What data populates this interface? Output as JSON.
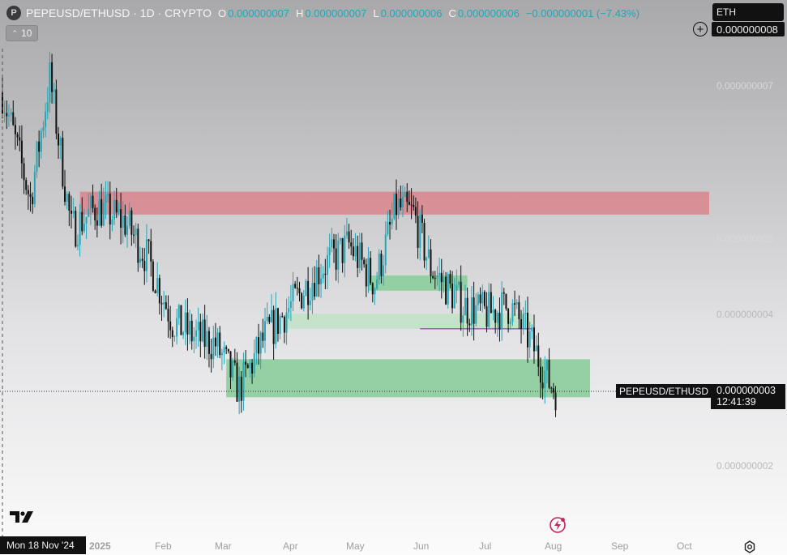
{
  "header": {
    "logo_letter": "P",
    "symbol_line": "PEPEUSD/ETHUSD · 1D · CRYPTO",
    "ohlc": [
      {
        "key": "O",
        "value": "0.000000007"
      },
      {
        "key": "H",
        "value": "0.000000007"
      },
      {
        "key": "L",
        "value": "0.000000006"
      },
      {
        "key": "C",
        "value": "0.000000006"
      }
    ],
    "change": "−0.000000001 (−7.43%)",
    "indicator_count": "10"
  },
  "currency": {
    "label": "ETH"
  },
  "price_axis": {
    "crosshair_price": "0.000000008",
    "levels": [
      "0.000000007",
      "0.000000005",
      "0.000000004",
      "0.000000002"
    ]
  },
  "last_price": {
    "symbol": "PEPEUSD/ETHUSD",
    "price": "0.000000003",
    "countdown": "12:41:39"
  },
  "time_axis": {
    "crosshair_date": "Mon 18 Nov '24",
    "year_label": "2025",
    "months": [
      "Feb",
      "Mar",
      "Apr",
      "May",
      "Jun",
      "Jul",
      "Aug",
      "Sep",
      "Oct"
    ]
  },
  "chart_data": {
    "type": "candlestick",
    "title": "PEPEUSD/ETHUSD · 1D · CRYPTO",
    "x_range": [
      "2024-11-18",
      "2025-10-31"
    ],
    "y_range": [
      1.5e-09,
      8.3e-09
    ],
    "series_color": "#22a7b7",
    "closes_approx": [
      {
        "date": "2024-11-18",
        "value": 6.9e-09
      },
      {
        "date": "2024-12-01",
        "value": 5.5e-09
      },
      {
        "date": "2024-12-10",
        "value": 7.1e-09
      },
      {
        "date": "2024-12-20",
        "value": 5.1e-09
      },
      {
        "date": "2025-01-01",
        "value": 5.4e-09
      },
      {
        "date": "2025-01-14",
        "value": 5.2e-09
      },
      {
        "date": "2025-01-25",
        "value": 4.7e-09
      },
      {
        "date": "2025-02-05",
        "value": 3.9e-09
      },
      {
        "date": "2025-02-15",
        "value": 3.7e-09
      },
      {
        "date": "2025-02-25",
        "value": 3.6e-09
      },
      {
        "date": "2025-03-08",
        "value": 3e-09
      },
      {
        "date": "2025-03-20",
        "value": 3.7e-09
      },
      {
        "date": "2025-04-01",
        "value": 4.1e-09
      },
      {
        "date": "2025-04-15",
        "value": 4.6e-09
      },
      {
        "date": "2025-04-28",
        "value": 4.9e-09
      },
      {
        "date": "2025-05-10",
        "value": 4.4e-09
      },
      {
        "date": "2025-05-20",
        "value": 5.4e-09
      },
      {
        "date": "2025-05-28",
        "value": 5.3e-09
      },
      {
        "date": "2025-06-05",
        "value": 4.6e-09
      },
      {
        "date": "2025-06-20",
        "value": 4.1e-09
      },
      {
        "date": "2025-07-01",
        "value": 4e-09
      },
      {
        "date": "2025-07-12",
        "value": 4.1e-09
      },
      {
        "date": "2025-07-22",
        "value": 3.6e-09
      },
      {
        "date": "2025-07-30",
        "value": 3.1e-09
      },
      {
        "date": "2025-08-02",
        "value": 3e-09
      }
    ],
    "zones": [
      {
        "kind": "resistance",
        "from": "2024-12-24",
        "to": "2025-10-31",
        "low": 5.3e-09,
        "high": 5.6e-09,
        "color": "#d98b92"
      },
      {
        "kind": "support",
        "from": "2025-05-07",
        "to": "2025-06-22",
        "low": 4.3e-09,
        "high": 4.5e-09,
        "color": "#8fcf9f"
      },
      {
        "kind": "support",
        "from": "2025-03-29",
        "to": "2025-07-22",
        "low": 3.8e-09,
        "high": 4e-09,
        "color": "#c3e2c8"
      },
      {
        "kind": "support",
        "from": "2025-03-02",
        "to": "2025-08-18",
        "low": 2.9e-09,
        "high": 3.4e-09,
        "color": "#8fcf9f"
      }
    ],
    "level_line": {
      "from": "2025-05-31",
      "to": "2025-07-22",
      "value": 3.8e-09,
      "color": "#9b2fb0"
    }
  }
}
